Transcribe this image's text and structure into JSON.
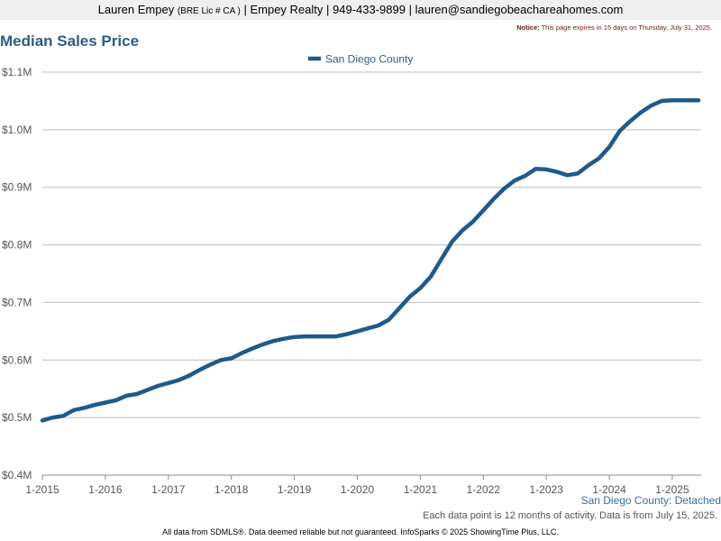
{
  "header": {
    "agent_name": "Lauren Empey",
    "license": "(BRE Lic # CA )",
    "company": "| Empey Realty |",
    "phone": "949-433-9899",
    "email": "| lauren@sandiegobeachareahomes.com"
  },
  "notice": {
    "label": "Notice:",
    "text": "This page expires in 15 days on Thursday, July 31, 2025."
  },
  "chart_data": {
    "type": "line",
    "title": "Median Sales Price",
    "subtitle": "San Diego County: Detached",
    "legend_position": "top-center",
    "grid": true,
    "ylim": [
      400000,
      1100000
    ],
    "y_ticks": [
      {
        "value": 400000,
        "label": "$0.4M"
      },
      {
        "value": 500000,
        "label": "$0.5M"
      },
      {
        "value": 600000,
        "label": "$0.6M"
      },
      {
        "value": 700000,
        "label": "$0.7M"
      },
      {
        "value": 800000,
        "label": "$0.8M"
      },
      {
        "value": 900000,
        "label": "$0.9M"
      },
      {
        "value": 1000000,
        "label": "$1.0M"
      },
      {
        "value": 1100000,
        "label": "$1.1M"
      }
    ],
    "x_ticks": [
      "1-2015",
      "1-2016",
      "1-2017",
      "1-2018",
      "1-2019",
      "1-2020",
      "1-2021",
      "1-2022",
      "1-2023",
      "1-2024",
      "1-2025"
    ],
    "series": [
      {
        "name": "San Diego County",
        "color": "#1f5a8c",
        "points": [
          [
            "2015-01",
            495000
          ],
          [
            "2015-03",
            500000
          ],
          [
            "2015-05",
            503000
          ],
          [
            "2015-07",
            513000
          ],
          [
            "2015-09",
            517000
          ],
          [
            "2015-11",
            522000
          ],
          [
            "2016-01",
            526000
          ],
          [
            "2016-03",
            530000
          ],
          [
            "2016-05",
            538000
          ],
          [
            "2016-07",
            541000
          ],
          [
            "2016-09",
            548000
          ],
          [
            "2016-11",
            555000
          ],
          [
            "2017-01",
            560000
          ],
          [
            "2017-03",
            565000
          ],
          [
            "2017-05",
            573000
          ],
          [
            "2017-07",
            583000
          ],
          [
            "2017-09",
            592000
          ],
          [
            "2017-11",
            600000
          ],
          [
            "2018-01",
            603000
          ],
          [
            "2018-03",
            612000
          ],
          [
            "2018-05",
            620000
          ],
          [
            "2018-07",
            627000
          ],
          [
            "2018-09",
            633000
          ],
          [
            "2018-11",
            637000
          ],
          [
            "2019-01",
            640000
          ],
          [
            "2019-03",
            641000
          ],
          [
            "2019-05",
            641000
          ],
          [
            "2019-07",
            641000
          ],
          [
            "2019-09",
            641000
          ],
          [
            "2019-11",
            645000
          ],
          [
            "2020-01",
            650000
          ],
          [
            "2020-03",
            655000
          ],
          [
            "2020-05",
            660000
          ],
          [
            "2020-07",
            670000
          ],
          [
            "2020-09",
            690000
          ],
          [
            "2020-11",
            710000
          ],
          [
            "2021-01",
            725000
          ],
          [
            "2021-03",
            745000
          ],
          [
            "2021-05",
            775000
          ],
          [
            "2021-07",
            805000
          ],
          [
            "2021-09",
            825000
          ],
          [
            "2021-11",
            840000
          ],
          [
            "2022-01",
            860000
          ],
          [
            "2022-03",
            880000
          ],
          [
            "2022-05",
            898000
          ],
          [
            "2022-07",
            912000
          ],
          [
            "2022-09",
            920000
          ],
          [
            "2022-11",
            932000
          ],
          [
            "2023-01",
            931000
          ],
          [
            "2023-03",
            927000
          ],
          [
            "2023-05",
            921000
          ],
          [
            "2023-07",
            924000
          ],
          [
            "2023-09",
            938000
          ],
          [
            "2023-11",
            950000
          ],
          [
            "2024-01",
            970000
          ],
          [
            "2024-03",
            998000
          ],
          [
            "2024-05",
            1015000
          ],
          [
            "2024-07",
            1030000
          ],
          [
            "2024-09",
            1042000
          ],
          [
            "2024-11",
            1050000
          ],
          [
            "2025-01",
            1051000
          ],
          [
            "2025-03",
            1051000
          ],
          [
            "2025-06",
            1051000
          ]
        ]
      }
    ]
  },
  "note": "Each data point is 12 months of activity. Data is from July 15, 2025.",
  "footer": "All data from SDMLS®. Data deemed reliable but not guaranteed. InfoSparks © 2025 ShowingTime Plus, LLC."
}
